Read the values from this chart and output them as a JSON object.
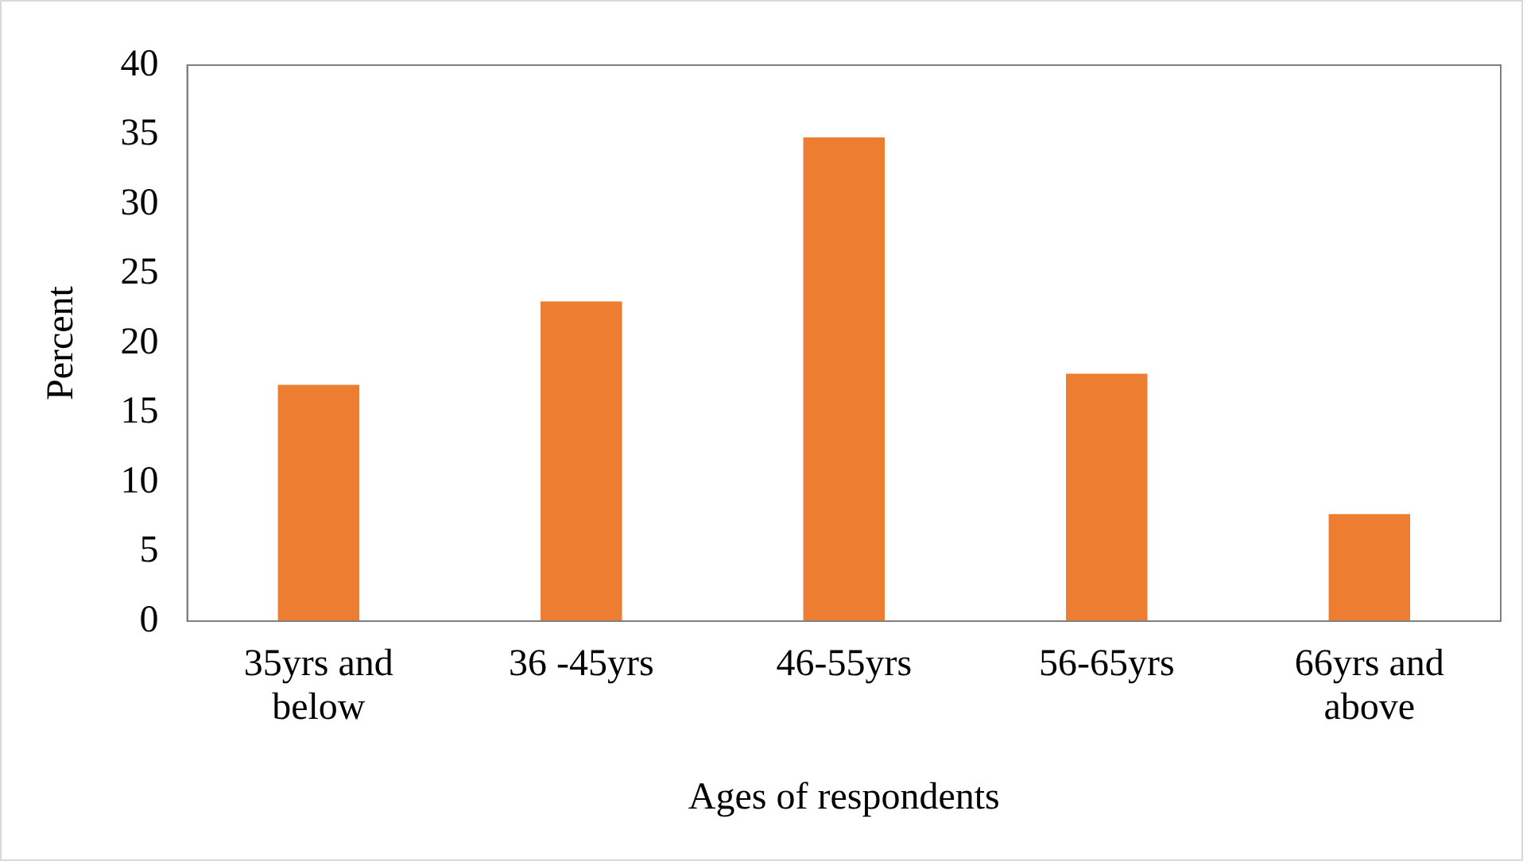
{
  "chart_data": {
    "type": "bar",
    "xlabel": "Ages of respondents",
    "ylabel": "Percent",
    "categories": [
      "35yrs and below",
      "36 -45yrs",
      "46-55yrs",
      "56-65yrs",
      "66yrs and above"
    ],
    "values": [
      17,
      23,
      34.8,
      17.8,
      7.7
    ],
    "color": "#ed7d31",
    "ylim": [
      0,
      40
    ],
    "yticks": [
      0,
      5,
      10,
      15,
      20,
      25,
      30,
      35,
      40
    ],
    "grid": false,
    "legend": false
  }
}
